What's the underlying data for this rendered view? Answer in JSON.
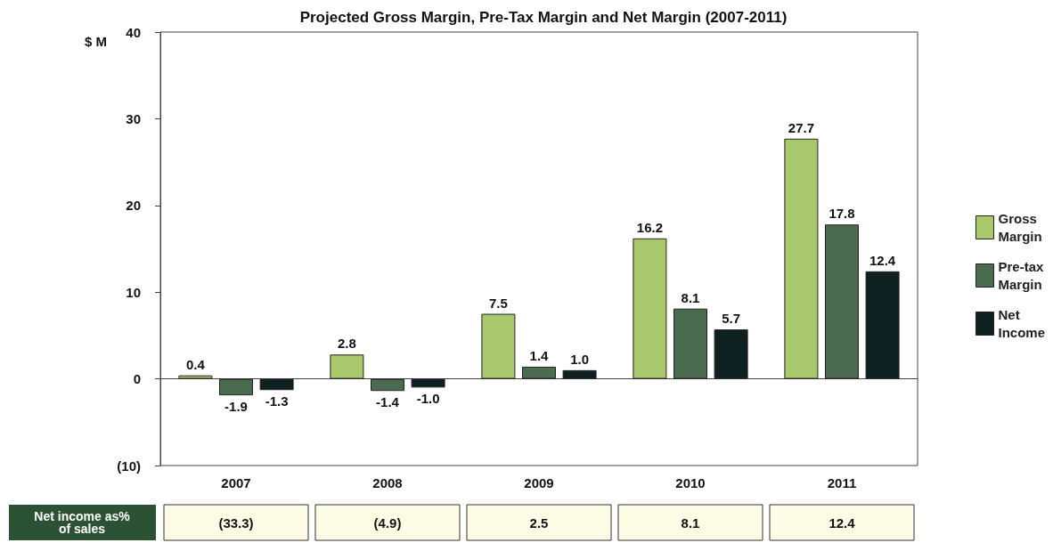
{
  "chart_data": {
    "type": "bar",
    "title": "Projected Gross Margin, Pre-Tax Margin and Net Margin (2007-2011)",
    "ylabel": "$ M",
    "categories": [
      "2007",
      "2008",
      "2009",
      "2010",
      "2011"
    ],
    "series": [
      {
        "name": "Gross Margin",
        "color": "#a9c86b",
        "values": [
          0.4,
          2.8,
          7.5,
          16.2,
          27.7
        ],
        "value_labels": [
          "0.4",
          "2.8",
          "7.5",
          "16.2",
          "27.7"
        ]
      },
      {
        "name": "Pre-tax Margin",
        "color": "#4b6b50",
        "values": [
          -1.9,
          -1.4,
          1.4,
          8.1,
          17.8
        ],
        "value_labels": [
          "-1.9",
          "-1.4",
          "1.4",
          "8.1",
          "17.8"
        ]
      },
      {
        "name": "Net Income",
        "color": "#0f2020",
        "values": [
          -1.3,
          -1.0,
          1.0,
          5.7,
          12.4
        ],
        "value_labels": [
          "-1.3",
          "-1.0",
          "1.0",
          "5.7",
          "12.4"
        ]
      }
    ],
    "ylim": [
      -10,
      40
    ],
    "yticks": [
      {
        "value": -10,
        "label": "(10)"
      },
      0,
      10,
      20,
      30,
      40
    ],
    "legend": "right",
    "annotations": [
      "Net income as% of sales",
      "(33.3)",
      "(4.9)",
      "2.5",
      "8.1",
      "12.4"
    ]
  }
}
